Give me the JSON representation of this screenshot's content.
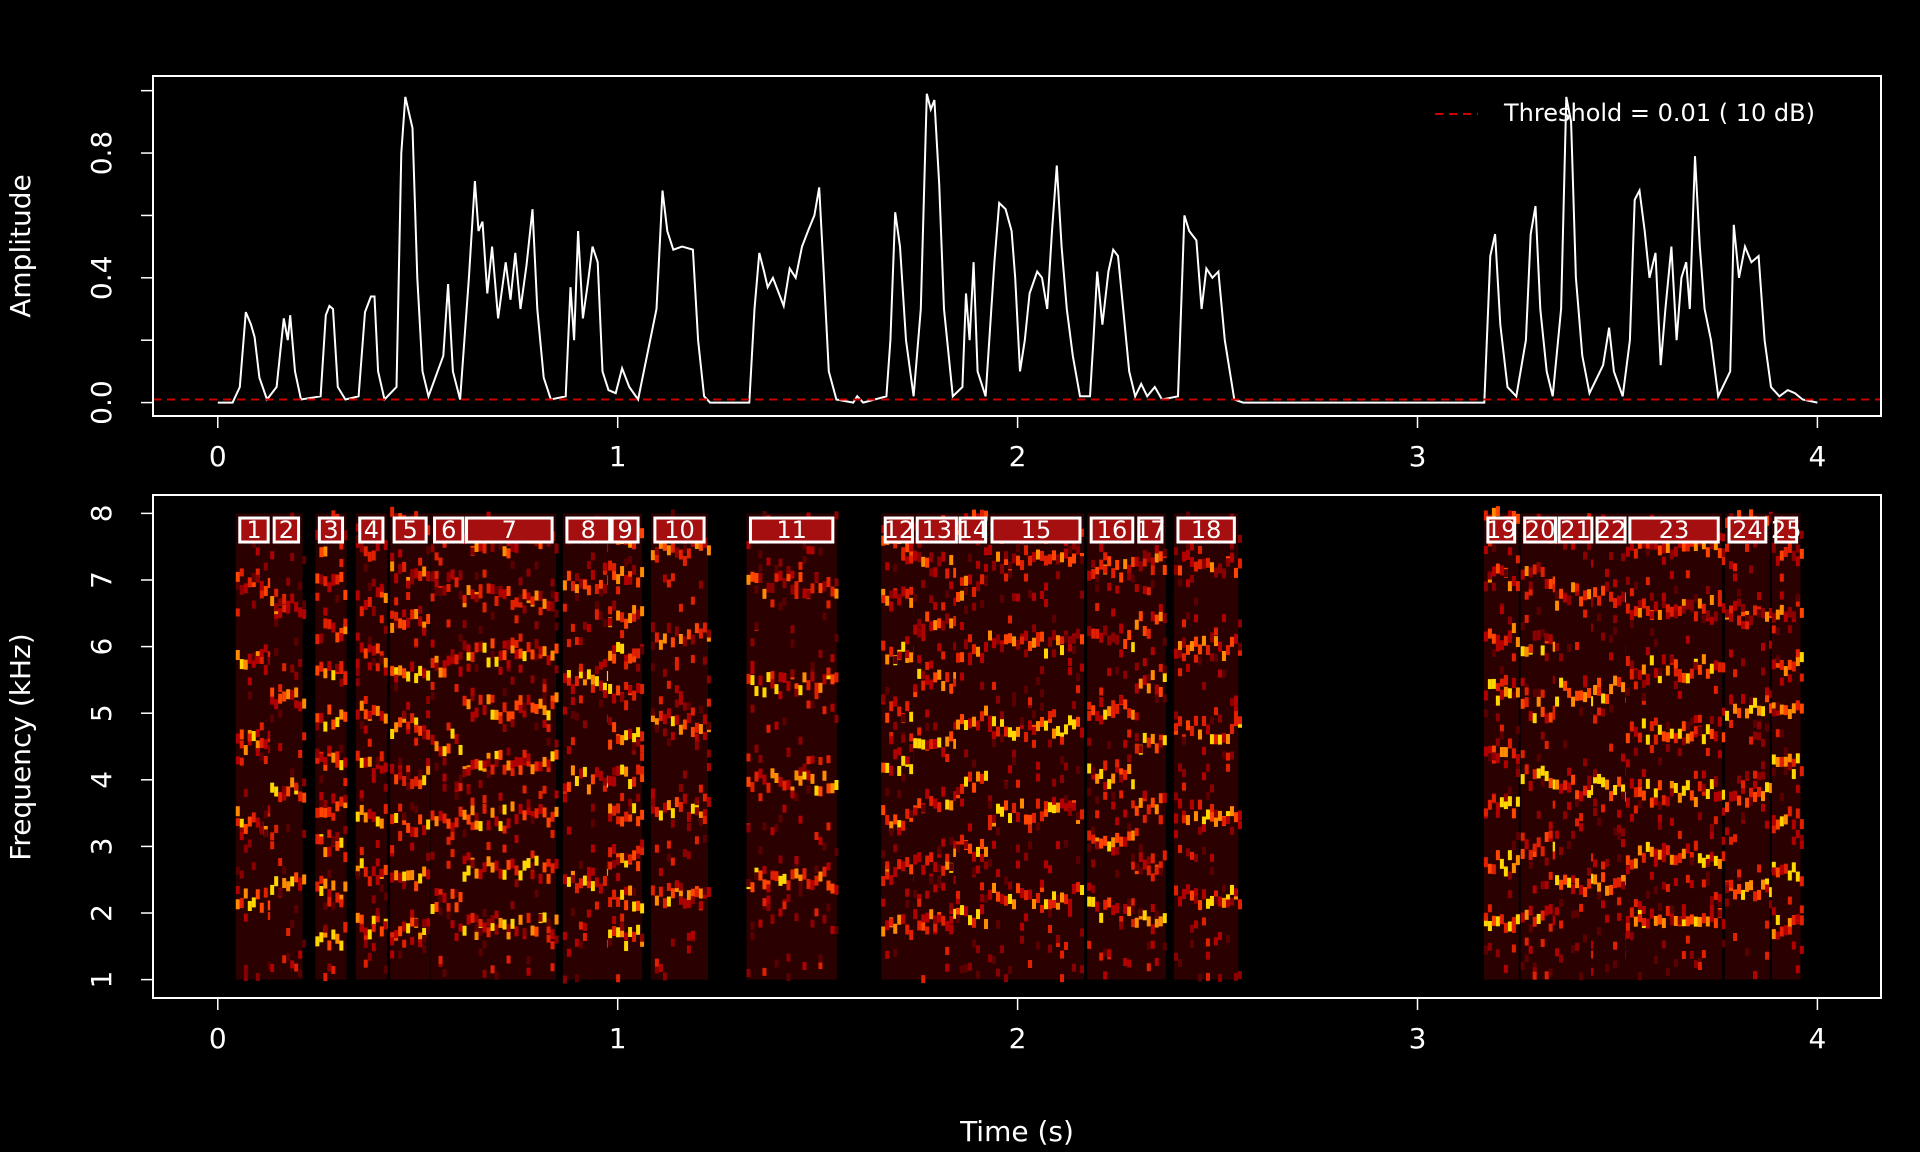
{
  "chart_data": [
    {
      "type": "line",
      "y_label": "Amplitude",
      "color": "#ffffff",
      "x": [
        0,
        0.037,
        0.055,
        0.07,
        0.083,
        0.092,
        0.104,
        0.123,
        0.147,
        0.165,
        0.175,
        0.181,
        0.193,
        0.208,
        0.257,
        0.27,
        0.279,
        0.288,
        0.3,
        0.319,
        0.352,
        0.368,
        0.383,
        0.392,
        0.401,
        0.417,
        0.447,
        0.459,
        0.469,
        0.478,
        0.487,
        0.499,
        0.512,
        0.527,
        0.564,
        0.576,
        0.588,
        0.606,
        0.628,
        0.643,
        0.652,
        0.662,
        0.674,
        0.686,
        0.701,
        0.72,
        0.732,
        0.744,
        0.757,
        0.772,
        0.787,
        0.799,
        0.815,
        0.833,
        0.87,
        0.882,
        0.891,
        0.901,
        0.913,
        0.925,
        0.937,
        0.95,
        0.962,
        0.977,
        0.995,
        1.011,
        1.029,
        1.051,
        1.097,
        1.112,
        1.124,
        1.139,
        1.161,
        1.188,
        1.201,
        1.216,
        1.231,
        1.329,
        1.342,
        1.354,
        1.366,
        1.375,
        1.388,
        1.403,
        1.415,
        1.43,
        1.445,
        1.461,
        1.476,
        1.492,
        1.504,
        1.516,
        1.528,
        1.547,
        1.589,
        1.599,
        1.614,
        1.672,
        1.682,
        1.694,
        1.706,
        1.721,
        1.74,
        1.758,
        1.773,
        1.783,
        1.792,
        1.804,
        1.816,
        1.838,
        1.862,
        1.871,
        1.88,
        1.89,
        1.9,
        1.92,
        1.942,
        1.954,
        1.97,
        1.985,
        1.994,
        2.006,
        2.018,
        2.03,
        2.049,
        2.061,
        2.074,
        2.086,
        2.098,
        2.11,
        2.123,
        2.138,
        2.156,
        2.181,
        2.19,
        2.199,
        2.212,
        2.227,
        2.239,
        2.251,
        2.264,
        2.279,
        2.294,
        2.309,
        2.324,
        2.343,
        2.361,
        2.401,
        2.417,
        2.429,
        2.447,
        2.46,
        2.472,
        2.487,
        2.502,
        2.518,
        2.542,
        2.564,
        3.167,
        3.182,
        3.194,
        3.207,
        3.225,
        3.247,
        3.271,
        3.283,
        3.295,
        3.307,
        3.323,
        3.338,
        3.359,
        3.372,
        3.384,
        3.396,
        3.412,
        3.43,
        3.464,
        3.479,
        3.491,
        3.513,
        3.531,
        3.543,
        3.555,
        3.568,
        3.58,
        3.595,
        3.608,
        3.62,
        3.635,
        3.648,
        3.66,
        3.672,
        3.681,
        3.694,
        3.706,
        3.718,
        3.734,
        3.752,
        3.782,
        3.791,
        3.804,
        3.819,
        3.835,
        3.853,
        3.868,
        3.884,
        3.905,
        3.926,
        3.944,
        3.963,
        4.0
      ],
      "values": [
        0,
        0,
        0.05,
        0.29,
        0.25,
        0.21,
        0.08,
        0.01,
        0.05,
        0.27,
        0.2,
        0.28,
        0.1,
        0.01,
        0.02,
        0.28,
        0.31,
        0.3,
        0.05,
        0.01,
        0.02,
        0.29,
        0.34,
        0.34,
        0.1,
        0.01,
        0.05,
        0.8,
        0.98,
        0.93,
        0.88,
        0.4,
        0.1,
        0.02,
        0.15,
        0.38,
        0.1,
        0.01,
        0.4,
        0.71,
        0.55,
        0.58,
        0.35,
        0.5,
        0.27,
        0.45,
        0.33,
        0.48,
        0.3,
        0.44,
        0.62,
        0.3,
        0.08,
        0.01,
        0.02,
        0.37,
        0.2,
        0.55,
        0.27,
        0.38,
        0.5,
        0.45,
        0.1,
        0.04,
        0.03,
        0.11,
        0.05,
        0.01,
        0.3,
        0.68,
        0.55,
        0.49,
        0.5,
        0.49,
        0.2,
        0.02,
        0,
        0,
        0.3,
        0.48,
        0.42,
        0.37,
        0.4,
        0.35,
        0.31,
        0.43,
        0.4,
        0.5,
        0.55,
        0.6,
        0.69,
        0.4,
        0.1,
        0.01,
        0,
        0.02,
        0,
        0.02,
        0.2,
        0.61,
        0.5,
        0.2,
        0.02,
        0.3,
        0.99,
        0.94,
        0.97,
        0.7,
        0.3,
        0.02,
        0.05,
        0.35,
        0.2,
        0.45,
        0.1,
        0.02,
        0.45,
        0.64,
        0.62,
        0.55,
        0.4,
        0.1,
        0.2,
        0.35,
        0.42,
        0.4,
        0.3,
        0.55,
        0.76,
        0.5,
        0.3,
        0.15,
        0.02,
        0.02,
        0.21,
        0.42,
        0.25,
        0.42,
        0.49,
        0.47,
        0.3,
        0.1,
        0.02,
        0.06,
        0.02,
        0.05,
        0.01,
        0.02,
        0.6,
        0.55,
        0.52,
        0.3,
        0.43,
        0.4,
        0.42,
        0.2,
        0.01,
        0,
        0,
        0.47,
        0.54,
        0.25,
        0.05,
        0.02,
        0.2,
        0.54,
        0.63,
        0.3,
        0.1,
        0.02,
        0.3,
        0.98,
        0.9,
        0.4,
        0.15,
        0.03,
        0.12,
        0.24,
        0.1,
        0.02,
        0.2,
        0.65,
        0.68,
        0.55,
        0.4,
        0.48,
        0.12,
        0.3,
        0.5,
        0.2,
        0.4,
        0.45,
        0.3,
        0.79,
        0.5,
        0.3,
        0.2,
        0.02,
        0.1,
        0.57,
        0.4,
        0.5,
        0.45,
        0.47,
        0.2,
        0.05,
        0.02,
        0.04,
        0.03,
        0.01,
        0
      ],
      "threshold": {
        "name": "Threshold = 0.01 ( 10 dB)",
        "value": 0.01,
        "color": "#cc0000"
      },
      "legend": "top-right",
      "xlim": [
        -0.162,
        4.159
      ],
      "xticks": [
        0,
        1,
        2,
        3,
        4
      ],
      "ylim": [
        -0.043,
        1.047
      ],
      "yticks": [
        {
          "value": 0,
          "label": "0.0"
        },
        {
          "value": 0.4,
          "label": "0.4"
        },
        {
          "value": 0.8,
          "label": "0.8"
        }
      ],
      "yminor_ticks": [
        0.2,
        0.6,
        1.0
      ]
    },
    {
      "type": "spectrogram",
      "x_label": "Time (s)",
      "y_label": "Frequency (kHz)",
      "frequency_range": [
        1,
        8
      ],
      "xlim": [
        -0.162,
        4.159
      ],
      "xticks": [
        0,
        1,
        2,
        3,
        4
      ],
      "ylim": [
        0.724,
        8.276
      ],
      "yticks": [
        1,
        2,
        3,
        4,
        5,
        6,
        7,
        8
      ],
      "segments": [
        {
          "label": "1",
          "start": 0.055,
          "end": 0.126
        },
        {
          "label": "2",
          "start": 0.141,
          "end": 0.202
        },
        {
          "label": "3",
          "start": 0.254,
          "end": 0.312
        },
        {
          "label": "4",
          "start": 0.355,
          "end": 0.413
        },
        {
          "label": "5",
          "start": 0.441,
          "end": 0.521
        },
        {
          "label": "6",
          "start": 0.542,
          "end": 0.613
        },
        {
          "label": "7",
          "start": 0.622,
          "end": 0.836
        },
        {
          "label": "8",
          "start": 0.873,
          "end": 0.98
        },
        {
          "label": "9",
          "start": 0.986,
          "end": 1.051
        },
        {
          "label": "10",
          "start": 1.093,
          "end": 1.216
        },
        {
          "label": "11",
          "start": 1.332,
          "end": 1.538
        },
        {
          "label": "12",
          "start": 1.669,
          "end": 1.737
        },
        {
          "label": "13",
          "start": 1.749,
          "end": 1.847
        },
        {
          "label": "14",
          "start": 1.856,
          "end": 1.92
        },
        {
          "label": "15",
          "start": 1.936,
          "end": 2.156
        },
        {
          "label": "16",
          "start": 2.184,
          "end": 2.288
        },
        {
          "label": "17",
          "start": 2.303,
          "end": 2.361
        },
        {
          "label": "18",
          "start": 2.401,
          "end": 2.542
        },
        {
          "label": "19",
          "start": 3.176,
          "end": 3.243
        },
        {
          "label": "20",
          "start": 3.268,
          "end": 3.345
        },
        {
          "label": "21",
          "start": 3.354,
          "end": 3.436
        },
        {
          "label": "22",
          "start": 3.449,
          "end": 3.519
        },
        {
          "label": "23",
          "start": 3.531,
          "end": 3.752
        },
        {
          "label": "24",
          "start": 3.779,
          "end": 3.871
        },
        {
          "label": "25",
          "start": 3.896,
          "end": 3.948
        }
      ]
    }
  ]
}
